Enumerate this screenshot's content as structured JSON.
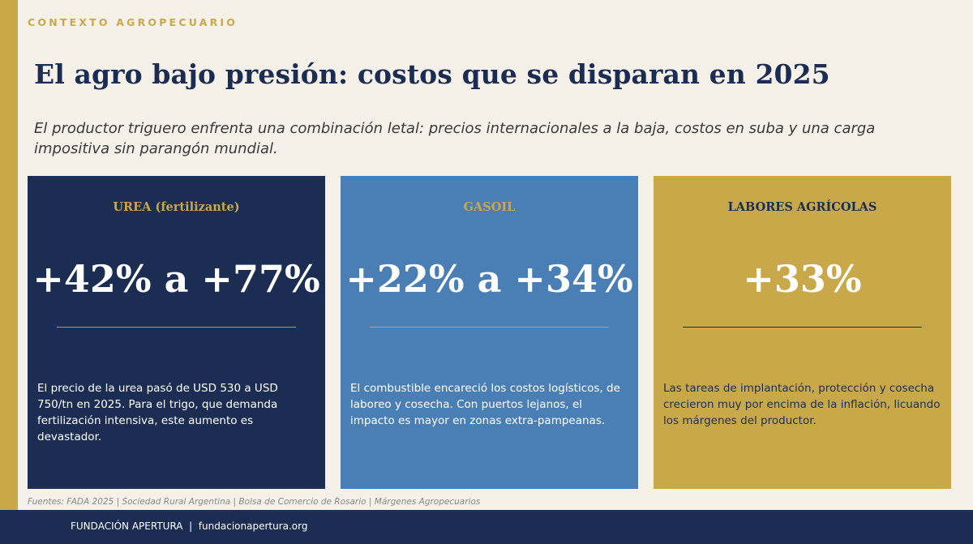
{
  "header": {
    "eyebrow": "CONTEXTO AGROPECUARIO",
    "title": "El agro bajo presión: costos que se disparan en 2025",
    "subtitle": "El productor triguero enfrenta una combinación letal: precios internacionales a la baja, costos en suba y una carga impositiva sin parangón mundial."
  },
  "cards": [
    {
      "label": "UREA (fertilizante)",
      "value": "+42% a +77%",
      "body": "El precio de la urea pasó de USD 530 a USD 750/tn en 2025. Para el trigo, que demanda fertilización intensiva, este aumento es devastador."
    },
    {
      "label": "GASOIL",
      "value": "+22% a +34%",
      "body": "El combustible encareció los costos logísticos, de laboreo y cosecha. Con puertos lejanos, el impacto es mayor en zonas extra-pampeanas."
    },
    {
      "label": "LABORES AGRÍCOLAS",
      "value": "+33%",
      "body": "Las tareas de implantación, protección y cosecha crecieron muy por encima de la inflación, licuando los márgenes del productor."
    }
  ],
  "sources": "Fuentes: FADA 2025 | Sociedad Rural Argentina | Bolsa de Comercio de Rosario | Márgenes Agropecuarios",
  "footer": {
    "text": "FUNDACIÓN APERTURA  |  fundacionapertura.org"
  },
  "colors": {
    "navy": "#1b2d52",
    "blue": "#4a7fb5",
    "gold": "#c9a84a",
    "background": "#f5f0e8"
  }
}
